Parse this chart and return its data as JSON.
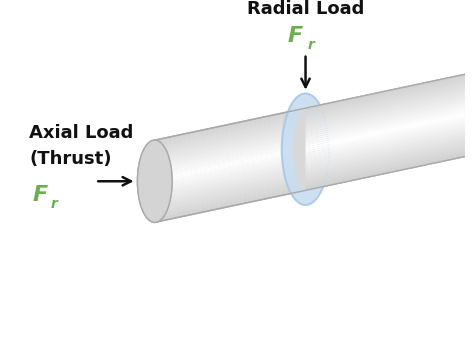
{
  "bg_color": "#ffffff",
  "cylinder_color_light": "#e8e8e8",
  "cylinder_color_mid": "#d0d0d0",
  "cylinder_color_dark": "#b8b8b8",
  "ring_color": "#c8ddf0",
  "ring_edge_color": "#a8c8e8",
  "arrow_color": "#111111",
  "label_color_black": "#111111",
  "label_color_green": "#6ab04c",
  "radial_label": "Radial Load",
  "axial_label_line1": "Axial Load",
  "axial_label_line2": "(Thrust)",
  "force_label": "F",
  "force_subscript": "r",
  "title_fontsize": 13,
  "label_fontsize": 11,
  "force_fontsize": 16
}
